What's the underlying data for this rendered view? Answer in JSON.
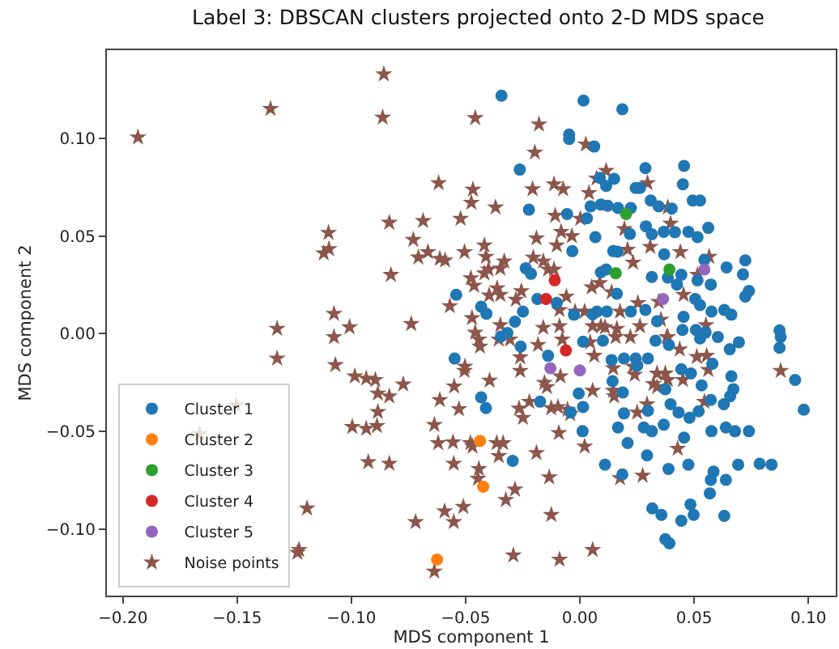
{
  "chart_data": {
    "type": "scatter",
    "title": "Label 3: DBSCAN clusters projected onto 2-D MDS space",
    "xlabel": "MDS component 1",
    "ylabel": "MDS component 2",
    "xlim": [
      -0.207,
      0.112
    ],
    "ylim": [
      -0.134,
      0.145
    ],
    "xticks": [
      {
        "value": -0.2,
        "label": "−0.20"
      },
      {
        "value": -0.15,
        "label": "−0.15"
      },
      {
        "value": -0.1,
        "label": "−0.10"
      },
      {
        "value": -0.05,
        "label": "−0.05"
      },
      {
        "value": 0,
        "label": "0.00"
      },
      {
        "value": 0.05,
        "label": "0.05"
      },
      {
        "value": 0.1,
        "label": "0.10"
      }
    ],
    "yticks": [
      {
        "value": -0.1,
        "label": "−0.10"
      },
      {
        "value": -0.05,
        "label": "−0.05"
      },
      {
        "value": 0,
        "label": "0.00"
      },
      {
        "value": 0.05,
        "label": "0.05"
      },
      {
        "value": 0.1,
        "label": "0.10"
      }
    ],
    "grid": false,
    "legend": "bottom left",
    "series": [
      {
        "name": "Cluster 1",
        "color": "#1f77b4",
        "marker": "circle",
        "x": [
          -0.0343,
          0.0016,
          0.0186,
          -0.0047,
          -0.0047,
          0.0063,
          -0.0263,
          0.0287,
          0.0456,
          0.0087,
          0.015,
          0.0115,
          0.0244,
          0.0263,
          0.0451,
          0.031,
          0.0494,
          0.0526,
          -0.0223,
          -0.0056,
          0.0047,
          0.0092,
          0.0122,
          0.0167,
          0.0223,
          0.0345,
          0.0402,
          0.0031,
          0.0289,
          0.0219,
          0.0315,
          0.0416,
          0.0367,
          0.0475,
          0.0515,
          0.0562,
          0.0068,
          -0.0033,
          0.0146,
          0.0165,
          0.0369,
          0.0724,
          0.0642,
          0.0545,
          -0.0237,
          -0.0214,
          0.0092,
          0.0115,
          0.0315,
          0.0385,
          0.0444,
          0.0714,
          0.0515,
          0.0573,
          0.0425,
          -0.0541,
          0.0162,
          0.074,
          0.0724,
          0.0505,
          -0.0432,
          -0.0186,
          -0.0409,
          -0.0249,
          -0.0101,
          -0.0026,
          0.0056,
          0.0075,
          0.0118,
          0.0223,
          0.0287,
          0.0338,
          0.0454,
          0.0526,
          0.0576,
          0.0632,
          0.0663,
          0.0874,
          0.0879,
          0.0874,
          -0.0284,
          -0.0345,
          -0.0317,
          -0.0259,
          0.0014,
          0.0101,
          0.0331,
          0.039,
          0.0449,
          0.0508,
          0.0526,
          0.0604,
          0.0656,
          0.0696,
          0.055,
          -0.0548,
          -0.0139,
          0.0139,
          0.0193,
          0.0244,
          0.0251,
          0.0298,
          0.0444,
          0.0486,
          0.058,
          0.0663,
          0.0143,
          0.0188,
          -0.0005,
          0.0374,
          0.0533,
          0.0672,
          0.0658,
          0.0573,
          0.063,
          -0.0432,
          -0.0411,
          -0.0174,
          -0.004,
          0.0014,
          0.0193,
          0.0298,
          0.0397,
          0.0432,
          0.048,
          0.052,
          0.0167,
          0.028,
          0.0315,
          0.0367,
          0.0012,
          0.0209,
          0.0456,
          0.0576,
          0.0639,
          0.0679,
          0.074,
          -0.0294,
          0.011,
          0.0294,
          0.0388,
          0.0475,
          0.0585,
          0.0573,
          0.0639,
          0.0693,
          0.0787,
          0.0839,
          0.0186,
          0.0569,
          0.0317,
          0.0357,
          0.0484,
          0.0498,
          0.0444,
          0.0632,
          0.0374,
          0.0392,
          0.0942,
          0.098
        ],
        "values": [
          0.1217,
          0.1192,
          0.1148,
          0.1018,
          0.0996,
          0.0957,
          0.0839,
          0.0847,
          0.0858,
          0.0797,
          0.0792,
          0.0756,
          0.0745,
          0.0745,
          0.0764,
          0.0681,
          0.0681,
          0.0681,
          0.0634,
          0.0612,
          0.0651,
          0.066,
          0.0654,
          0.0643,
          0.0643,
          0.0651,
          0.064,
          0.059,
          0.0549,
          0.051,
          0.0508,
          0.0519,
          0.0521,
          0.0521,
          0.0494,
          0.0541,
          0.0494,
          0.0422,
          0.0422,
          0.0419,
          0.0406,
          0.0375,
          0.0339,
          0.0378,
          0.0334,
          0.0306,
          0.0314,
          0.0328,
          0.029,
          0.0287,
          0.0301,
          0.0303,
          0.0273,
          0.0251,
          0.0251,
          0.0199,
          0.0204,
          0.0218,
          0.019,
          0.0177,
          0.0138,
          0.0177,
          0.0102,
          0.0113,
          0.0157,
          0.0097,
          0.0099,
          0.0113,
          0.0113,
          0.0113,
          0.0121,
          0.0063,
          0.0086,
          0.0146,
          0.0113,
          0.0121,
          0.0097,
          0.0017,
          -0.0017,
          -0.0072,
          0.0061,
          -0.0014,
          0.0003,
          -0.0066,
          -0.0041,
          -0.0036,
          -0.0036,
          -0.0058,
          0.0019,
          0.0019,
          -0.0025,
          -0.0017,
          -0.008,
          -0.0044,
          0.0006,
          -0.0127,
          -0.0113,
          -0.0135,
          -0.0127,
          -0.0127,
          -0.0163,
          -0.0127,
          -0.0182,
          -0.0204,
          -0.0154,
          -0.0218,
          -0.0243,
          -0.0301,
          -0.0306,
          -0.0284,
          -0.0265,
          -0.0284,
          -0.032,
          -0.0339,
          -0.0361,
          -0.0326,
          -0.0381,
          -0.0348,
          -0.0403,
          -0.0375,
          -0.0408,
          -0.0394,
          -0.0361,
          -0.0403,
          -0.043,
          -0.0397,
          -0.048,
          -0.048,
          -0.0499,
          -0.0466,
          -0.0499,
          -0.056,
          -0.0532,
          -0.0499,
          -0.048,
          -0.0499,
          -0.0499,
          -0.0651,
          -0.067,
          -0.0623,
          -0.0692,
          -0.067,
          -0.0706,
          -0.0748,
          -0.0748,
          -0.067,
          -0.0665,
          -0.067,
          -0.072,
          -0.0817,
          -0.0894,
          -0.0927,
          -0.0874,
          -0.0927,
          -0.0957,
          -0.0932,
          -0.1051,
          -0.1073,
          -0.0237,
          -0.0389
        ]
      },
      {
        "name": "Cluster 2",
        "color": "#ff7f0e",
        "marker": "circle",
        "x": [
          -0.0437,
          -0.0423,
          -0.0625
        ],
        "values": [
          -0.0549,
          -0.0783,
          -0.1156
        ]
      },
      {
        "name": "Cluster 3",
        "color": "#2ca02c",
        "marker": "circle",
        "x": [
          0.0202,
          0.0157,
          0.0392
        ],
        "values": [
          0.0612,
          0.0309,
          0.0328
        ]
      },
      {
        "name": "Cluster 4",
        "color": "#d62728",
        "marker": "circle",
        "x": [
          -0.011,
          -0.0148,
          -0.0061
        ],
        "values": [
          0.0273,
          0.0177,
          -0.0086
        ]
      },
      {
        "name": "Cluster 5",
        "color": "#9467bd",
        "marker": "circle",
        "x": [
          -0.0129,
          0,
          0.0364,
          0.0545
        ],
        "values": [
          -0.0177,
          -0.0188,
          0.0177,
          0.0328
        ]
      },
      {
        "name": "Noise points",
        "color": "#8c564b",
        "marker": "star",
        "x": [
          -0.0858,
          -0.1354,
          -0.0863,
          -0.1934,
          -0.0458,
          -0.0179,
          0.0026,
          -0.0197,
          -0.0618,
          -0.0468,
          -0.0475,
          -0.0369,
          -0.0207,
          -0.0113,
          -0.0073,
          0.004,
          0.0115,
          0.0073,
          0.0296,
          -0.0834,
          -0.0686,
          -0.0522,
          -0.0108,
          0.0002,
          0.0385,
          0.0397,
          -0.019,
          -0.0082,
          -0.0035,
          -0.0101,
          0.0195,
          0.0209,
          0.0233,
          0.0308,
          0.044,
          0.0566,
          -0.11,
          -0.1098,
          -0.1121,
          -0.0729,
          -0.0665,
          -0.0707,
          -0.0613,
          -0.059,
          -0.0505,
          -0.0418,
          -0.0411,
          -0.0331,
          -0.04,
          -0.0418,
          -0.0348,
          -0.0204,
          -0.016,
          -0.0139,
          -0.0113,
          -0.0827,
          -0.0477,
          -0.0463,
          -0.0397,
          -0.0362,
          -0.0348,
          -0.0256,
          -0.028,
          -0.0059,
          0.0052,
          0.0087,
          0.0139,
          0.0254,
          0.0345,
          0.0454,
          0.0515,
          -0.0569,
          -0.0472,
          -0.0089,
          -0.0021,
          0.0021,
          0.0056,
          0.0092,
          0.011,
          0.0176,
          0.0162,
          0.0263,
          0.0355,
          0.0385,
          0.0552,
          -0.1076,
          -0.1076,
          -0.1325,
          -0.1325,
          -0.1008,
          -0.107,
          -0.0738,
          -0.0458,
          -0.0442,
          -0.0437,
          -0.0355,
          -0.0306,
          -0.0348,
          -0.016,
          -0.0089,
          -0.0077,
          0.0045,
          0.0063,
          0.0157,
          0.0221,
          0.038,
          0.0437,
          0.0512,
          0.0555,
          -0.0503,
          -0.0505,
          -0.0261,
          -0.0261,
          -0.0183,
          0.0146,
          0.0233,
          0.024,
          0.0338,
          0.0374,
          0.0451,
          -0.0985,
          -0.0935,
          -0.0895,
          -0.0884,
          -0.0834,
          -0.0773,
          -0.0395,
          -0.055,
          -0.0155,
          -0.0144,
          -0.0085,
          0.0056,
          0.0146,
          0.015,
          0.0322,
          0.0338,
          0.0545,
          0.0294,
          -0.0613,
          -0.0266,
          -0.0249,
          -0.0221,
          -0.0125,
          -0.0096,
          -0.0054,
          -0.0042,
          -0.0529,
          -0.0884,
          -0.0996,
          -0.0935,
          -0.0888,
          -0.0637,
          -0.0555,
          -0.062,
          -0.0479,
          -0.047,
          -0.0364,
          -0.0336,
          -0.0355,
          -0.019,
          -0.0092,
          0.0021,
          0.0428,
          0.0879,
          0.0562,
          0.0385,
          0.0251,
          -0.0926,
          -0.0834,
          -0.0552,
          -0.0719,
          -0.0592,
          -0.0552,
          -0.051,
          -0.0442,
          -0.0446,
          -0.0324,
          -0.0284,
          -0.0134,
          -0.0125,
          0.0275,
          0.0176,
          0.0056,
          -0.0089,
          -0.0291,
          -0.0637,
          -0.1194,
          -0.1229,
          -0.1236,
          -0.1504,
          -0.1664
        ],
        "values": [
          0.1327,
          0.115,
          0.1106,
          0.1004,
          0.1103,
          0.107,
          0.0968,
          0.0927,
          0.077,
          0.0737,
          0.067,
          0.0646,
          0.0739,
          0.0764,
          0.0739,
          0.072,
          0.0833,
          0.0794,
          0.077,
          0.0568,
          0.0577,
          0.0588,
          0.0604,
          0.0588,
          0.0646,
          0.0563,
          0.0488,
          0.0521,
          0.0499,
          0.0452,
          0.0535,
          0.043,
          0.0364,
          0.0444,
          0.0417,
          0.0394,
          0.0516,
          0.0433,
          0.0411,
          0.048,
          0.0417,
          0.039,
          0.0383,
          0.0375,
          0.0417,
          0.0452,
          0.0394,
          0.037,
          0.0328,
          0.0309,
          0.0334,
          0.0389,
          0.037,
          0.0328,
          0.0328,
          0.0301,
          0.0284,
          0.0246,
          0.0196,
          0.0232,
          0.0199,
          0.0218,
          0.0174,
          0.019,
          0.0237,
          0.0259,
          0.0212,
          0.0157,
          0.0163,
          0.0199,
          0.0301,
          0.0141,
          0.008,
          0.0121,
          0.0113,
          0.0113,
          0.0039,
          0.0039,
          0.0033,
          0.0113,
          0.0025,
          0.0039,
          0.0072,
          -0.0017,
          0.0044,
          0.0102,
          -0.0017,
          0.0025,
          -0.0127,
          0.0033,
          -0.016,
          0.005,
          0.0006,
          -0.003,
          -0.0066,
          -0.003,
          -0.003,
          0.0044,
          0.003,
          0.0039,
          -0.003,
          -0.0044,
          -0.0113,
          -0.0017,
          -0.0017,
          -0.0017,
          -0.008,
          -0.0119,
          -0.0113,
          -0.0168,
          -0.019,
          -0.0121,
          -0.019,
          -0.0058,
          -0.0177,
          -0.0168,
          -0.021,
          -0.0204,
          -0.0204,
          -0.0237,
          -0.0218,
          -0.0229,
          -0.0237,
          -0.0306,
          -0.032,
          -0.0259,
          -0.024,
          -0.027,
          -0.0251,
          -0.0273,
          -0.0218,
          -0.0292,
          -0.0292,
          -0.032,
          -0.0257,
          -0.0273,
          -0.0348,
          -0.0361,
          -0.0339,
          -0.0383,
          -0.043,
          -0.0348,
          -0.0381,
          -0.0375,
          -0.0389,
          -0.0411,
          -0.0386,
          -0.04,
          -0.0477,
          -0.0486,
          -0.0472,
          -0.0466,
          -0.0555,
          -0.056,
          -0.056,
          -0.0577,
          -0.056,
          -0.056,
          -0.0626,
          -0.061,
          -0.0508,
          -0.0577,
          -0.0588,
          -0.019,
          -0.0185,
          -0.0237,
          -0.0403,
          -0.0657,
          -0.0665,
          -0.0665,
          -0.0963,
          -0.0908,
          -0.0963,
          -0.0886,
          -0.0692,
          -0.0742,
          -0.085,
          -0.0797,
          -0.0734,
          -0.0927,
          -0.0726,
          -0.0739,
          -0.1106,
          -0.1156,
          -0.1134,
          -0.1217,
          -0.0894,
          -0.1106,
          -0.112,
          -0.0367,
          -0.0513
        ]
      }
    ]
  }
}
